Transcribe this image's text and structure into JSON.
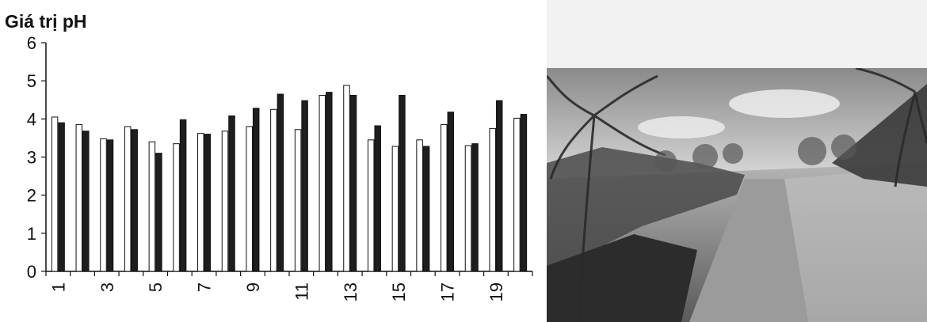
{
  "chart_data": {
    "type": "bar",
    "title": "Giá trị pH",
    "ylim": [
      0,
      6
    ],
    "yticks": [
      "0",
      "1",
      "2",
      "3",
      "4",
      "5",
      "6"
    ],
    "categories": [
      "1",
      "2",
      "3",
      "4",
      "5",
      "6",
      "7",
      "8",
      "9",
      "10",
      "11",
      "12",
      "13",
      "14",
      "15",
      "16",
      "17",
      "18",
      "19",
      "20"
    ],
    "xtick_labels": [
      "1",
      "",
      "3",
      "",
      "5",
      "",
      "7",
      "",
      "9",
      "",
      "11",
      "",
      "13",
      "",
      "15",
      "",
      "17",
      "",
      "19",
      ""
    ],
    "series": [
      {
        "color": "#ffffff",
        "values": [
          4.05,
          3.85,
          3.48,
          3.8,
          3.4,
          3.35,
          3.62,
          3.68,
          3.8,
          4.25,
          3.72,
          4.62,
          4.88,
          3.45,
          3.28,
          3.45,
          3.85,
          3.3,
          3.75,
          4.02
        ]
      },
      {
        "color": "#1e1e1e",
        "values": [
          3.9,
          3.68,
          3.45,
          3.72,
          3.1,
          3.98,
          3.6,
          4.08,
          4.28,
          4.65,
          4.48,
          4.7,
          4.62,
          3.82,
          4.62,
          3.28,
          4.18,
          3.35,
          4.48,
          4.12
        ]
      }
    ],
    "grid": false,
    "legend": "none"
  },
  "photo": {
    "description_icon": "coconut-field-photo"
  }
}
